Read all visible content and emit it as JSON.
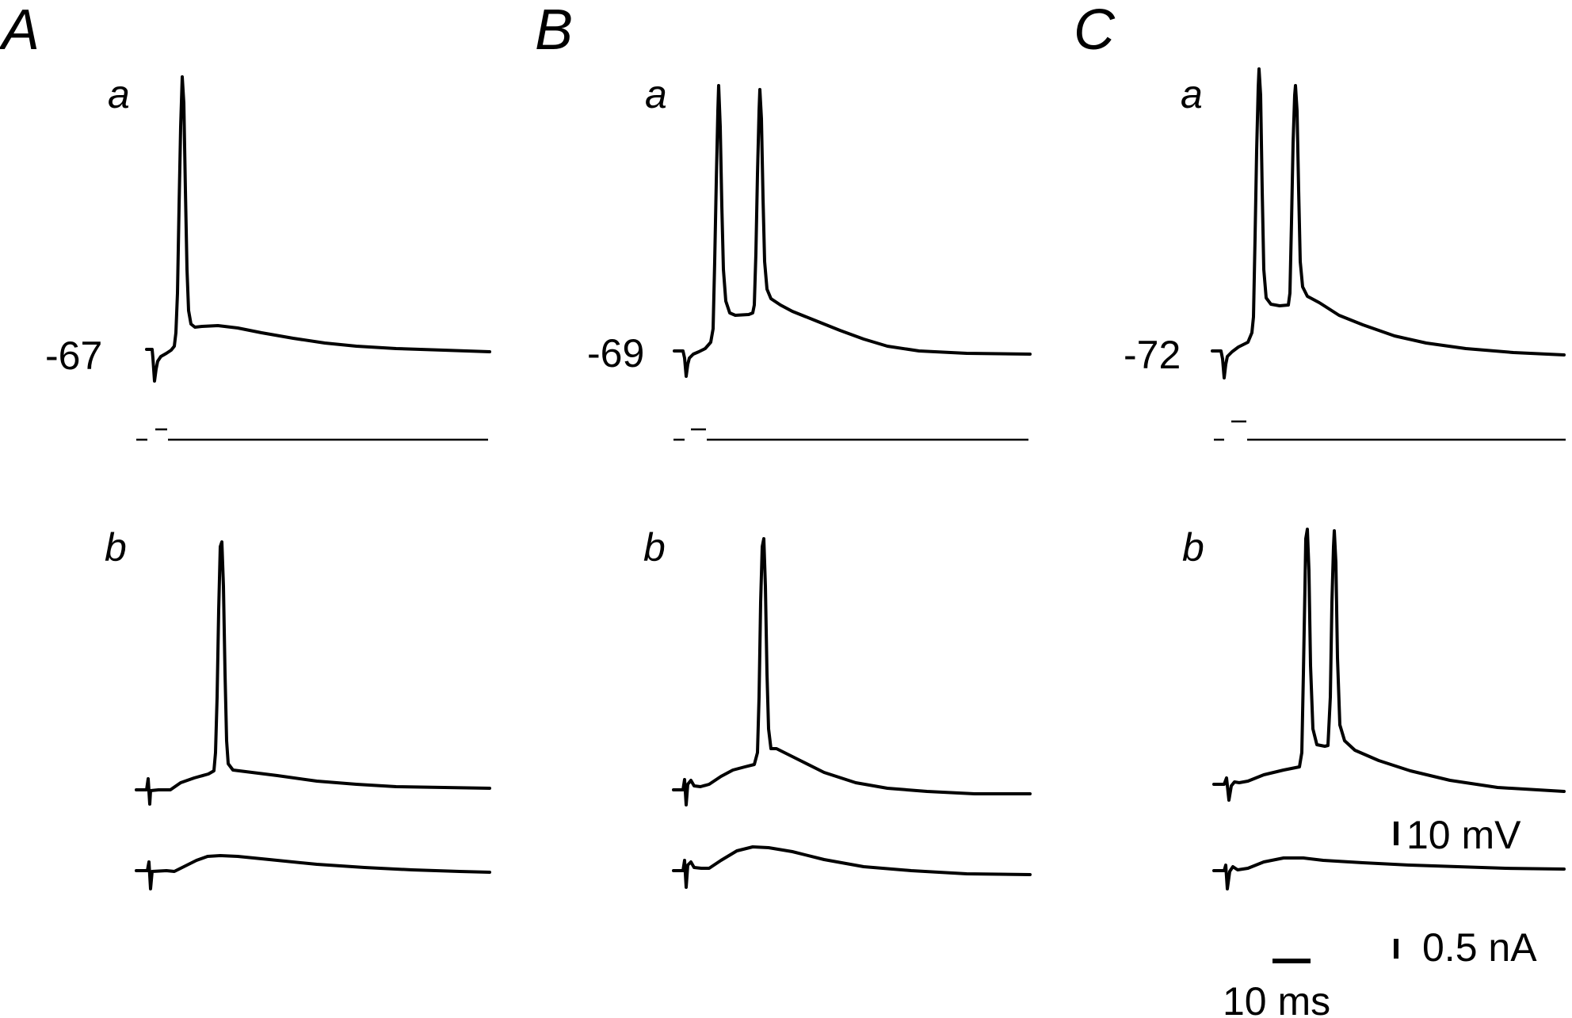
{
  "panels": [
    {
      "letter": "A",
      "a": {
        "label": "a",
        "resting_potential": "-67"
      },
      "b": {
        "label": "b"
      }
    },
    {
      "letter": "B",
      "a": {
        "label": "a",
        "resting_potential": "-69"
      },
      "b": {
        "label": "b"
      }
    },
    {
      "letter": "C",
      "a": {
        "label": "a",
        "resting_potential": "-72"
      },
      "b": {
        "label": "b"
      }
    }
  ],
  "scale_bars": {
    "voltage": "10 mV",
    "current": "0.5 nA",
    "time": "10 ms"
  }
}
